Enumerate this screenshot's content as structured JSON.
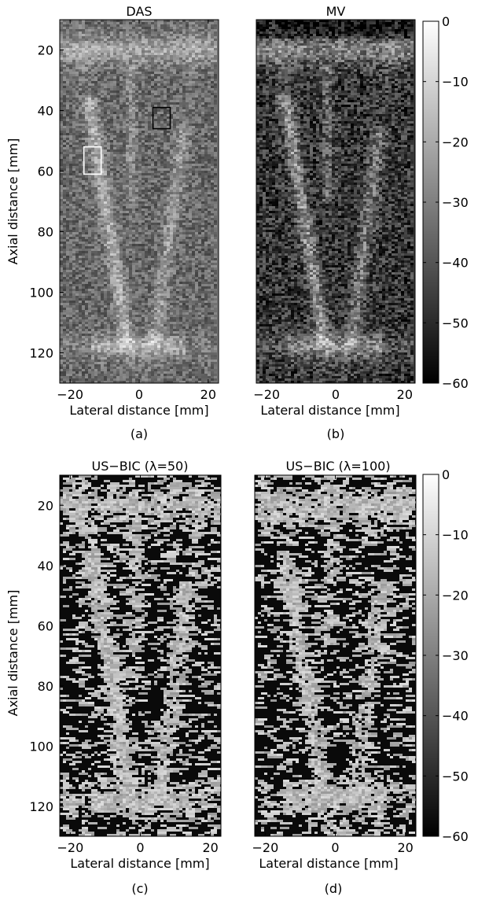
{
  "panels": [
    {
      "id": "a",
      "title": "DAS",
      "caption": "(a)",
      "xlabel": "Lateral distance [mm]",
      "ylabel": "Axial distance [mm]",
      "xticks": [
        "−20",
        "0",
        "20"
      ],
      "yticks": [
        "20",
        "40",
        "60",
        "80",
        "100",
        "120"
      ],
      "style": "das",
      "roi_boxes": [
        {
          "name": "white-roi",
          "color": "#ffffff",
          "lateral_mm": [
            -16,
            -11
          ],
          "axial_mm": [
            52,
            61
          ]
        },
        {
          "name": "black-roi",
          "color": "#000000",
          "lateral_mm": [
            4,
            9
          ],
          "axial_mm": [
            39,
            46
          ]
        }
      ]
    },
    {
      "id": "b",
      "title": "MV",
      "caption": "(b)",
      "xlabel": "Lateral distance [mm]",
      "ylabel": "",
      "xticks": [
        "−20",
        "0",
        "20"
      ],
      "yticks": [],
      "style": "mv",
      "roi_boxes": []
    },
    {
      "id": "c",
      "title": "US−BIC (λ=50)",
      "caption": "(c)",
      "xlabel": "Lateral distance [mm]",
      "ylabel": "Axial distance [mm]",
      "xticks": [
        "−20",
        "0",
        "20"
      ],
      "yticks": [
        "20",
        "40",
        "60",
        "80",
        "100",
        "120"
      ],
      "style": "bic",
      "roi_boxes": []
    },
    {
      "id": "d",
      "title": "US−BIC (λ=100)",
      "caption": "(d)",
      "xlabel": "Lateral distance [mm]",
      "ylabel": "",
      "xticks": [
        "−20",
        "0",
        "20"
      ],
      "yticks": [],
      "style": "bic",
      "roi_boxes": []
    }
  ],
  "axes": {
    "lateral_range_mm": [
      -23,
      23
    ],
    "axial_range_mm": [
      10,
      130
    ],
    "xtick_values_mm": [
      -20,
      0,
      20
    ],
    "ytick_values_mm": [
      20,
      40,
      60,
      80,
      100,
      120
    ]
  },
  "colorbars": [
    {
      "id": "top",
      "ticks": [
        "0",
        "−10",
        "−20",
        "−30",
        "−40",
        "−50",
        "−60"
      ],
      "range_db": [
        -60,
        0
      ]
    },
    {
      "id": "bottom",
      "ticks": [
        "0",
        "−10",
        "−20",
        "−30",
        "−40",
        "−50",
        "−60"
      ],
      "range_db": [
        -60,
        0
      ]
    }
  ],
  "colormap": "gray"
}
